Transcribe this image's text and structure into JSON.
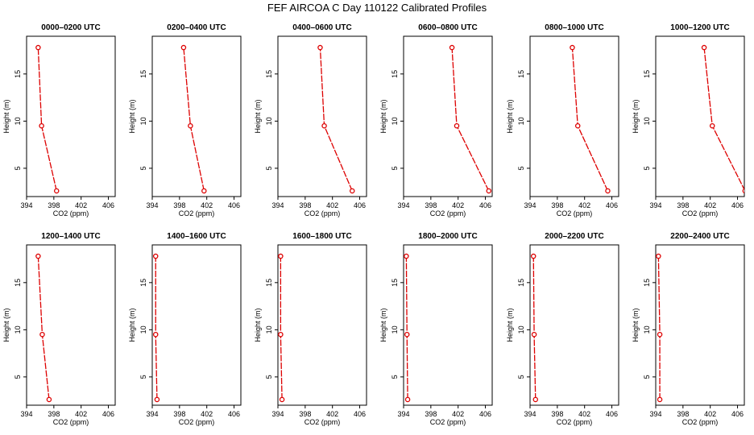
{
  "figure_title": "FEF AIRCOA C  Day 110122  Calibrated Profiles",
  "colors": {
    "profile": "#dd0000",
    "axis": "#000000",
    "background": "#ffffff"
  },
  "chart_data": {
    "type": "line",
    "xlabel": "CO2 (ppm)",
    "ylabel": "Height (m)",
    "xlim": [
      394,
      407
    ],
    "xticks": [
      394,
      398,
      402,
      406
    ],
    "ylim": [
      2,
      19
    ],
    "yticks": [
      5,
      10,
      15
    ],
    "heights": [
      2.6,
      9.5,
      17.8
    ],
    "panels": [
      {
        "title": "0000–0200 UTC",
        "x": [
          398.4,
          396.2,
          395.7
        ]
      },
      {
        "title": "0200–0400 UTC",
        "x": [
          401.6,
          399.6,
          398.6
        ]
      },
      {
        "title": "0400–0600 UTC",
        "x": [
          404.9,
          400.8,
          400.2
        ]
      },
      {
        "title": "0600–0800 UTC",
        "x": [
          406.5,
          401.8,
          401.1
        ]
      },
      {
        "title": "0800–1000 UTC",
        "x": [
          405.4,
          401.0,
          400.2
        ]
      },
      {
        "title": "1000–1200 UTC",
        "x": [
          407.1,
          402.3,
          401.1
        ]
      },
      {
        "title": "1200–1400 UTC",
        "x": [
          397.3,
          396.3,
          395.7
        ]
      },
      {
        "title": "1400–1600 UTC",
        "x": [
          394.7,
          394.5,
          394.5
        ]
      },
      {
        "title": "1600–1800 UTC",
        "x": [
          394.6,
          394.4,
          394.4
        ]
      },
      {
        "title": "1800–2000 UTC",
        "x": [
          394.6,
          394.5,
          394.4
        ]
      },
      {
        "title": "2000–2200 UTC",
        "x": [
          394.8,
          394.6,
          394.5
        ]
      },
      {
        "title": "2200–2400 UTC",
        "x": [
          394.6,
          394.6,
          394.4
        ]
      }
    ]
  }
}
